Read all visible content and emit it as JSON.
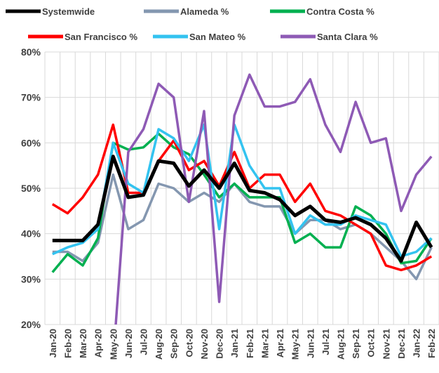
{
  "chart_data": {
    "type": "line",
    "categories": [
      "Jan-20",
      "Feb-20",
      "Mar-20",
      "Apr-20",
      "May-20",
      "Jun-20",
      "Jul-20",
      "Aug-20",
      "Sep-20",
      "Oct-20",
      "Nov-20",
      "Dec-20",
      "Jan-21",
      "Feb-21",
      "Mar-21",
      "Apr-21",
      "May-21",
      "Jun-21",
      "Jul-21",
      "Aug-21",
      "Sep-21",
      "Oct-21",
      "Nov-21",
      "Dec-21",
      "Jan-22",
      "Feb-22"
    ],
    "series": [
      {
        "name": "Systemwide",
        "color": "#000000",
        "values": [
          38.5,
          38.5,
          38.5,
          42,
          57,
          48,
          48.5,
          56,
          55.5,
          50.5,
          54,
          50,
          55.5,
          49.5,
          49,
          47.5,
          44,
          46,
          43,
          42.5,
          43.5,
          42,
          39,
          34,
          42.5,
          37
        ]
      },
      {
        "name": "Alameda %",
        "color": "#8497b0",
        "values": [
          36,
          36,
          34,
          38,
          53,
          41,
          43,
          51,
          50,
          47,
          49,
          47,
          51,
          47,
          46,
          46,
          40,
          43,
          43,
          41,
          42,
          40,
          37,
          34,
          30,
          37
        ]
      },
      {
        "name": "Contra Costa %",
        "color": "#00b050",
        "values": [
          31.5,
          35.5,
          33,
          39,
          60,
          58.5,
          59,
          62,
          59,
          57.5,
          53,
          48,
          51,
          48,
          48,
          48,
          38,
          40,
          37,
          37,
          46,
          44,
          40,
          33.5,
          34,
          39
        ]
      },
      {
        "name": "San Francisco %",
        "color": "#ff0000",
        "values": [
          46.5,
          44.5,
          48,
          53,
          64,
          49,
          49,
          56,
          60.5,
          54,
          56,
          50.5,
          58,
          50,
          53,
          53,
          47,
          51,
          45,
          44,
          42,
          40,
          33,
          32,
          33,
          35
        ]
      },
      {
        "name": "San Mateo %",
        "color": "#33c3f0",
        "values": [
          35.5,
          37,
          38,
          41,
          60,
          51,
          49,
          63,
          61,
          56,
          64,
          41,
          64,
          55,
          50,
          50,
          40,
          44,
          42,
          42,
          44,
          43,
          42,
          35,
          36,
          39
        ]
      },
      {
        "name": "Santa Clara %",
        "color": "#8e5ab5",
        "values": [
          null,
          null,
          null,
          null,
          12,
          58,
          63,
          73,
          70,
          47,
          67,
          25,
          66,
          75,
          68,
          68,
          69,
          74,
          64,
          58,
          69,
          60,
          61,
          45,
          53,
          57
        ]
      }
    ],
    "ylim": [
      20,
      80
    ],
    "yticks": [
      {
        "value": 20,
        "label": "20%"
      },
      {
        "value": 30,
        "label": "30%"
      },
      {
        "value": 40,
        "label": "40%"
      },
      {
        "value": 50,
        "label": "50%"
      },
      {
        "value": 60,
        "label": "60%"
      },
      {
        "value": 70,
        "label": "70%"
      },
      {
        "value": 80,
        "label": "80%"
      }
    ],
    "grid": true,
    "legend": "top"
  }
}
